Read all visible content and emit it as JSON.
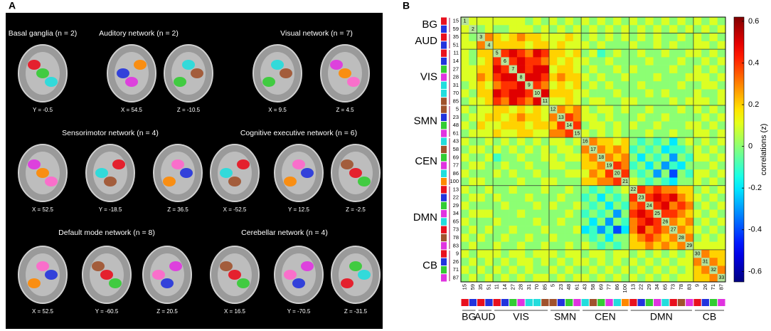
{
  "panel_a": {
    "label": "A",
    "networks": [
      {
        "title": "Basal ganglia (n = 2)",
        "slices": [
          "Y = -0.5"
        ]
      },
      {
        "title": "Auditory network (n = 2)",
        "slices": [
          "X = 54.5",
          "Z = -10.5"
        ]
      },
      {
        "title": "Visual network (n = 7)",
        "slices": [
          "X = 9.5",
          "Z = 4.5"
        ]
      },
      {
        "title": "Sensorimotor network (n = 4)",
        "slices": [
          "X = 52.5",
          "Y = -18.5",
          "Z = 36.5"
        ]
      },
      {
        "title": "Cognitive executive network (n = 6)",
        "slices": [
          "X = -52.5",
          "Y = 12.5",
          "Z = -2.5"
        ]
      },
      {
        "title": "Default mode network (n = 8)",
        "slices": [
          "X = 52.5",
          "Y = -60.5",
          "Z = 20.5"
        ]
      },
      {
        "title": "Cerebellar network (n = 4)",
        "slices": [
          "X = 16.5",
          "Y = -70.5",
          "Z = -31.5"
        ]
      }
    ]
  },
  "chart_data": {
    "type": "heatmap",
    "label": "B",
    "colormap": "jet",
    "groups": [
      {
        "name": "BG",
        "components": [
          15,
          59
        ],
        "colors": [
          "#e8101e",
          "#2233dd"
        ]
      },
      {
        "name": "AUD",
        "components": [
          35,
          51
        ],
        "colors": [
          "#e8101e",
          "#2233dd"
        ]
      },
      {
        "name": "VIS",
        "components": [
          11,
          14,
          27,
          28,
          31,
          70,
          85
        ],
        "colors": [
          "#e8101e",
          "#2233dd",
          "#33cc33",
          "#e033e0",
          "#22dddd",
          "#22dddd",
          "#a0522d"
        ]
      },
      {
        "name": "SMN",
        "components": [
          5,
          23,
          48,
          61
        ],
        "colors": [
          "#a0522d",
          "#2233dd",
          "#33cc33",
          "#e033e0"
        ]
      },
      {
        "name": "CEN",
        "components": [
          43,
          58,
          69,
          77,
          86,
          100
        ],
        "colors": [
          "#22dddd",
          "#a0522d",
          "#33cc33",
          "#e033e0",
          "#22dddd",
          "#ff8800"
        ]
      },
      {
        "name": "DMN",
        "components": [
          13,
          22,
          29,
          34,
          65,
          73,
          78,
          83
        ],
        "colors": [
          "#e8101e",
          "#2233dd",
          "#33cc33",
          "#e033e0",
          "#22dddd",
          "#e8101e",
          "#a0522d",
          "#e033e0"
        ]
      },
      {
        "name": "CB",
        "components": [
          9,
          26,
          71,
          87
        ],
        "colors": [
          "#e8101e",
          "#2233dd",
          "#33cc33",
          "#e033e0"
        ]
      }
    ],
    "diagonal": [
      1,
      2,
      3,
      4,
      5,
      6,
      7,
      8,
      9,
      10,
      11,
      12,
      13,
      14,
      15,
      16,
      17,
      18,
      19,
      20,
      21,
      22,
      23,
      24,
      25,
      26,
      27,
      28,
      29,
      30,
      31,
      32,
      33
    ],
    "values": [
      [],
      [
        0.1
      ],
      [
        0.1,
        0
      ],
      [
        0.1,
        0.1,
        0.3
      ],
      [
        0.1,
        0,
        0.2,
        0.2
      ],
      [
        0.1,
        0,
        0.1,
        0.2,
        0.4
      ],
      [
        0.1,
        0.1,
        0.2,
        0.2,
        0.5,
        0.4
      ],
      [
        0.1,
        0.1,
        0.3,
        0.2,
        0.4,
        0.5,
        0.5
      ],
      [
        0,
        0.1,
        0.2,
        0.1,
        0.3,
        0.4,
        0.4,
        0.5
      ],
      [
        0.1,
        0,
        0.2,
        0.2,
        0.5,
        0.4,
        0.5,
        0.5,
        0.4
      ],
      [
        0,
        0.1,
        0.1,
        0.2,
        0.4,
        0.3,
        0.5,
        0.4,
        0.3,
        0.5
      ],
      [
        0.1,
        0,
        0.1,
        0.1,
        0.2,
        0.2,
        0.1,
        0.2,
        0.1,
        0.2,
        0.1
      ],
      [
        0,
        0.1,
        0.1,
        0.2,
        0.2,
        0.1,
        0.2,
        0.3,
        0.2,
        0.2,
        0.1,
        0.3
      ],
      [
        0.1,
        0,
        0.2,
        0.1,
        0.1,
        0.2,
        0.2,
        0.2,
        0.1,
        0.2,
        0.2,
        0.2,
        0.4
      ],
      [
        0,
        0.1,
        0.1,
        0.1,
        0.2,
        0.1,
        0.1,
        0.2,
        0.2,
        0.1,
        0.1,
        0.3,
        0.3,
        0.4
      ],
      [
        0.1,
        0,
        0,
        0.1,
        0,
        0.1,
        0,
        0.1,
        0,
        0.1,
        0,
        0.1,
        0.1,
        0,
        0.1
      ],
      [
        0,
        0.1,
        0.1,
        0,
        0.1,
        0,
        0.1,
        0,
        0.1,
        0,
        0.1,
        0,
        0.1,
        0.1,
        0,
        0.3
      ],
      [
        0.1,
        0,
        0,
        0.1,
        -0.1,
        0,
        0,
        0.1,
        0,
        0,
        0.1,
        0.1,
        0,
        0.1,
        0.1,
        0.2,
        0.3
      ],
      [
        0,
        0.1,
        0.1,
        0,
        0,
        0.1,
        0,
        0,
        0.1,
        0,
        0,
        0.1,
        0.1,
        0,
        0,
        0.2,
        0.2,
        0.3
      ],
      [
        0.1,
        0,
        0,
        0,
        0.1,
        0,
        0.1,
        0,
        0,
        0.1,
        0,
        0,
        0,
        0.1,
        0.1,
        0.1,
        0.3,
        0.2,
        0.4
      ],
      [
        0,
        0.1,
        0.1,
        0,
        0,
        0,
        0,
        0.1,
        0,
        0,
        0.1,
        0.1,
        0,
        0,
        0,
        0.2,
        0.2,
        0.3,
        0.3,
        0.4
      ],
      [
        0.1,
        0,
        0,
        0.1,
        0,
        0,
        0.1,
        0,
        0,
        0,
        0.1,
        0,
        0,
        0.1,
        0,
        0,
        -0.1,
        0,
        -0.1,
        0,
        0.1
      ],
      [
        0,
        0.1,
        0.1,
        0,
        0.1,
        0,
        0,
        0,
        0.1,
        0,
        0,
        0,
        0.1,
        0,
        0,
        -0.1,
        0,
        -0.2,
        0,
        -0.1,
        0,
        0.4
      ],
      [
        0.1,
        0,
        0,
        0,
        0,
        0.1,
        0,
        0,
        0,
        0.1,
        0,
        0.1,
        0,
        0,
        0.1,
        0,
        -0.1,
        0,
        -0.2,
        0,
        -0.1,
        0.3,
        0.4
      ],
      [
        0,
        0.1,
        0.1,
        0.1,
        0,
        0,
        0,
        0.1,
        0,
        0,
        0,
        0,
        0,
        0.1,
        0,
        -0.1,
        0,
        -0.1,
        0,
        -0.3,
        0,
        0.4,
        0.5,
        0.4
      ],
      [
        0.1,
        0,
        0,
        0,
        0.1,
        0,
        0,
        0,
        0,
        0.1,
        0,
        0,
        0.1,
        0,
        0,
        0,
        -0.2,
        0,
        -0.3,
        0,
        -0.1,
        0.3,
        0.4,
        0.5,
        0.4
      ],
      [
        0,
        0.1,
        0,
        0.1,
        0,
        0,
        0.1,
        0,
        0,
        0,
        0.1,
        0,
        0,
        0,
        0.1,
        -0.2,
        -0.1,
        -0.3,
        -0.1,
        -0.4,
        -0.2,
        0.3,
        0.5,
        0.3,
        0.4,
        0.3
      ],
      [
        0.1,
        0,
        0.1,
        0,
        0,
        0.1,
        0,
        0,
        0.1,
        0,
        0,
        0.1,
        0,
        0,
        0,
        0,
        -0.1,
        0,
        -0.2,
        0,
        0,
        0.2,
        0.3,
        0.4,
        0.3,
        0.2,
        0.3
      ],
      [
        0,
        0.1,
        0,
        0,
        0.1,
        0,
        0,
        0.1,
        0,
        0,
        0.1,
        0,
        0,
        0.1,
        0,
        0.1,
        0,
        -0.1,
        0,
        -0.1,
        0,
        0.2,
        0.2,
        0.3,
        0.2,
        0.3,
        0.2,
        0.3
      ],
      [
        0.1,
        0,
        0.1,
        0.1,
        0.1,
        0,
        0.1,
        0.1,
        0,
        0.1,
        0.1,
        0.1,
        0,
        0.1,
        0.1,
        0,
        0.1,
        0.1,
        0,
        0.1,
        0.1,
        0,
        0.1,
        0,
        0.1,
        0,
        0.1,
        0,
        0.1
      ],
      [
        0,
        0.1,
        0,
        0.1,
        0,
        0.1,
        0,
        0.1,
        0.1,
        0,
        0.1,
        0,
        0.1,
        0,
        0.1,
        0.1,
        0,
        0.1,
        0,
        0.1,
        0,
        0.1,
        0,
        0.1,
        0,
        0.1,
        0,
        0.1,
        0.1,
        0.3
      ],
      [
        0.1,
        0,
        0.1,
        0,
        0.1,
        0,
        0.1,
        0,
        0.1,
        0,
        0,
        0.1,
        0,
        0.1,
        0,
        0,
        0.1,
        0,
        0.1,
        0,
        0.1,
        0,
        0.1,
        0,
        0.1,
        0,
        0.1,
        0,
        0.1,
        0.2,
        0.3
      ],
      [
        0,
        0.1,
        0,
        0.1,
        0,
        0.1,
        0,
        0.1,
        0,
        0.1,
        0.1,
        0,
        0.1,
        0,
        0.1,
        0.1,
        0,
        0.1,
        0,
        0.1,
        0,
        0.1,
        0,
        0.1,
        0,
        0.1,
        0,
        0.1,
        0.1,
        0.2,
        0.2,
        0.3
      ]
    ],
    "clim": [
      -0.65,
      0.62
    ],
    "cticks": [
      0.6,
      0.4,
      0.2,
      0,
      -0.2,
      -0.4,
      -0.6
    ],
    "colorbar_label": "correlations (z)"
  }
}
